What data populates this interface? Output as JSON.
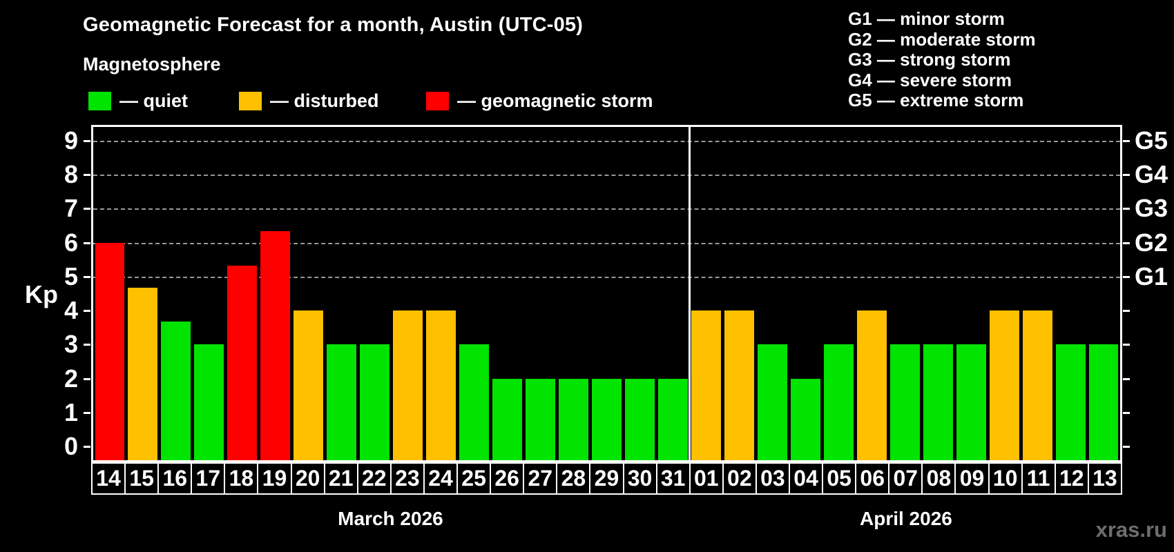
{
  "header": {
    "title": "Geomagnetic Forecast for a month, Austin (UTC-05)",
    "subtitle": "Magnetosphere",
    "legend": [
      {
        "name": "quiet",
        "label": "— quiet",
        "color": "#00E400"
      },
      {
        "name": "disturbed",
        "label": "— disturbed",
        "color": "#FFC000"
      },
      {
        "name": "storm",
        "label": "— geomagnetic storm",
        "color": "#FF0000"
      }
    ],
    "g_scale": [
      "G1 — minor storm",
      "G2 — moderate storm",
      "G3 — strong storm",
      "G4 — severe storm",
      "G5 — extreme storm"
    ]
  },
  "chart_data": {
    "type": "bar",
    "title": "Geomagnetic Forecast for a month, Austin (UTC-05)",
    "subtitle": "Magnetosphere",
    "ylabel": "Kp",
    "ylim": [
      0,
      9
    ],
    "display_ylim": [
      -0.4,
      9.4
    ],
    "yticks": [
      0,
      1,
      2,
      3,
      4,
      5,
      6,
      7,
      8,
      9
    ],
    "gridlines_at": [
      5,
      6,
      7,
      8,
      9
    ],
    "grid_style": "dashed-horizontal",
    "right_axis": [
      {
        "label": "G1",
        "kp": 5
      },
      {
        "label": "G2",
        "kp": 6
      },
      {
        "label": "G3",
        "kp": 7
      },
      {
        "label": "G4",
        "kp": 8
      },
      {
        "label": "G5",
        "kp": 9
      }
    ],
    "palette": {
      "quiet": "#00E400",
      "disturbed": "#FFC000",
      "storm": "#FF0000"
    },
    "legend_position": "top-left",
    "groups": [
      {
        "label": "March 2026",
        "days": [
          "14",
          "15",
          "16",
          "17",
          "18",
          "19",
          "20",
          "21",
          "22",
          "23",
          "24",
          "25",
          "26",
          "27",
          "28",
          "29",
          "30",
          "31"
        ],
        "values": [
          6.0,
          4.67,
          3.67,
          3.0,
          5.33,
          6.33,
          4.0,
          3.0,
          3.0,
          4.0,
          4.0,
          3.0,
          2.0,
          2.0,
          2.0,
          2.0,
          2.0,
          2.0
        ],
        "status": [
          "storm",
          "disturbed",
          "green-quiet",
          "green-quiet",
          "storm",
          "storm",
          "disturbed",
          "green-quiet",
          "green-quiet",
          "disturbed",
          "disturbed",
          "green-quiet",
          "green-quiet",
          "green-quiet",
          "green-quiet",
          "green-quiet",
          "green-quiet",
          "green-quiet"
        ]
      },
      {
        "label": "April 2026",
        "days": [
          "01",
          "02",
          "03",
          "04",
          "05",
          "06",
          "07",
          "08",
          "09",
          "10",
          "11",
          "12",
          "13"
        ],
        "values": [
          4.0,
          4.0,
          3.0,
          2.0,
          3.0,
          4.0,
          3.0,
          3.0,
          3.0,
          4.0,
          4.0,
          3.0,
          3.0
        ],
        "status": [
          "disturbed",
          "disturbed",
          "green-quiet",
          "green-quiet",
          "green-quiet",
          "disturbed",
          "green-quiet",
          "green-quiet",
          "green-quiet",
          "disturbed",
          "disturbed",
          "green-quiet",
          "green-quiet"
        ]
      }
    ]
  },
  "footer": {
    "watermark": "xras.ru"
  }
}
